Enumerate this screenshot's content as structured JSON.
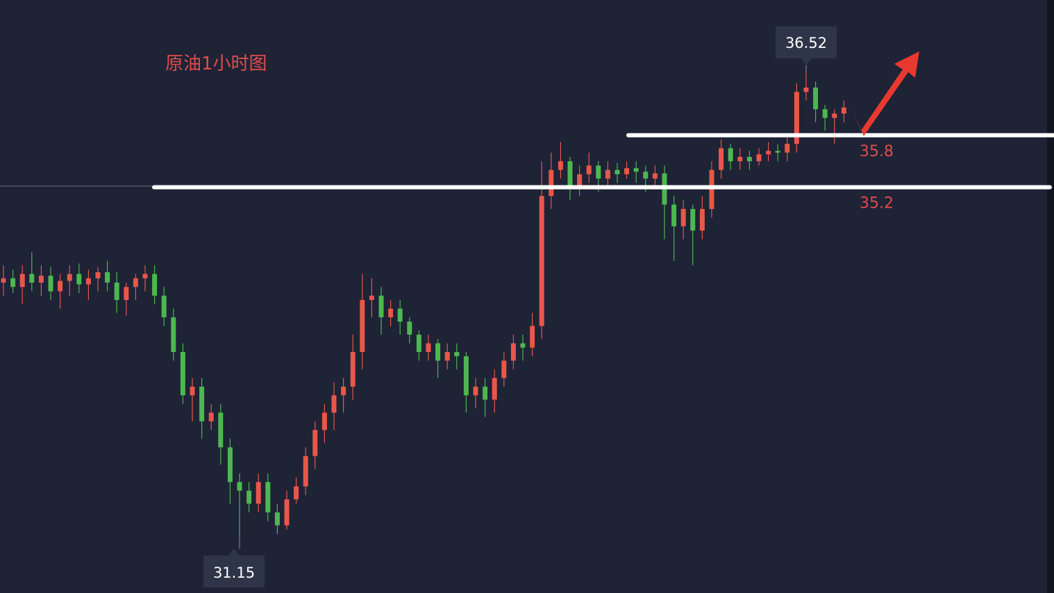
{
  "chart_data": {
    "type": "candlestick",
    "title": "原油1小时图",
    "up_color": "#e8574a",
    "down_color": "#4cb84f",
    "ylim": [
      30.52,
      37.36
    ],
    "open": [
      34.1,
      34.15,
      34.05,
      34.2,
      34.1,
      34.18,
      34.0,
      34.12,
      34.2,
      34.08,
      34.15,
      34.22,
      34.1,
      33.9,
      34.05,
      34.15,
      34.2,
      33.95,
      33.7,
      33.3,
      32.8,
      32.9,
      32.5,
      32.6,
      32.2,
      31.8,
      31.7,
      31.55,
      31.8,
      31.45,
      31.3,
      31.6,
      31.75,
      32.1,
      32.4,
      32.6,
      32.8,
      32.9,
      33.3,
      33.9,
      33.95,
      33.7,
      33.8,
      33.65,
      33.5,
      33.3,
      33.4,
      33.2,
      33.3,
      33.25,
      32.8,
      32.9,
      32.75,
      33.0,
      33.2,
      33.4,
      33.35,
      33.6,
      35.1,
      35.4,
      35.5,
      35.2,
      35.35,
      35.45,
      35.3,
      35.4,
      35.35,
      35.42,
      35.38,
      35.3,
      35.36,
      35.0,
      34.75,
      34.95,
      34.7,
      34.95,
      35.4,
      35.65,
      35.5,
      35.55,
      35.5,
      35.58,
      35.62,
      35.6,
      35.7,
      36.3,
      36.35,
      36.1,
      36.0,
      36.05
    ],
    "high": [
      34.3,
      34.25,
      34.3,
      34.45,
      34.3,
      34.28,
      34.2,
      34.3,
      34.32,
      34.25,
      34.28,
      34.35,
      34.22,
      34.1,
      34.2,
      34.3,
      34.3,
      34.05,
      33.8,
      33.4,
      33.0,
      33.0,
      32.7,
      32.7,
      32.3,
      31.9,
      31.8,
      31.9,
      31.9,
      31.55,
      31.7,
      31.85,
      32.2,
      32.5,
      32.7,
      32.95,
      33.0,
      33.5,
      34.2,
      34.15,
      34.05,
      33.9,
      33.9,
      33.7,
      33.55,
      33.5,
      33.45,
      33.4,
      33.4,
      33.3,
      33.0,
      33.0,
      33.1,
      33.3,
      33.5,
      33.5,
      33.75,
      35.5,
      35.6,
      35.72,
      35.55,
      35.45,
      35.6,
      35.5,
      35.5,
      35.48,
      35.5,
      35.5,
      35.45,
      35.45,
      35.45,
      35.1,
      35.05,
      35.0,
      35.1,
      35.5,
      35.75,
      35.7,
      35.65,
      35.62,
      35.65,
      35.72,
      35.7,
      35.8,
      36.4,
      36.52,
      36.42,
      36.15,
      36.1,
      36.2
    ],
    "low": [
      33.95,
      33.98,
      33.85,
      34.0,
      33.95,
      33.9,
      33.8,
      33.95,
      33.98,
      33.9,
      34.0,
      34.0,
      33.75,
      33.72,
      33.9,
      34.0,
      33.85,
      33.6,
      33.2,
      32.7,
      32.5,
      32.3,
      32.4,
      32.0,
      31.55,
      31.15,
      31.45,
      31.45,
      31.35,
      31.2,
      31.25,
      31.55,
      31.65,
      31.95,
      32.25,
      32.4,
      32.6,
      32.75,
      33.1,
      33.7,
      33.5,
      33.6,
      33.5,
      33.4,
      33.2,
      33.2,
      33.0,
      33.1,
      33.1,
      32.6,
      32.65,
      32.55,
      32.6,
      32.9,
      33.1,
      33.2,
      33.25,
      33.45,
      34.95,
      35.3,
      35.05,
      35.1,
      35.25,
      35.15,
      35.2,
      35.25,
      35.3,
      35.25,
      35.15,
      35.2,
      34.6,
      34.35,
      34.6,
      34.3,
      34.6,
      34.85,
      35.3,
      35.4,
      35.4,
      35.4,
      35.45,
      35.5,
      35.5,
      35.5,
      35.6,
      36.2,
      35.95,
      35.85,
      35.7,
      35.95
    ],
    "close": [
      34.15,
      34.05,
      34.2,
      34.1,
      34.18,
      34.0,
      34.12,
      34.2,
      34.08,
      34.15,
      34.22,
      34.1,
      33.9,
      34.05,
      34.15,
      34.2,
      33.95,
      33.7,
      33.3,
      32.8,
      32.9,
      32.5,
      32.6,
      32.2,
      31.8,
      31.7,
      31.55,
      31.8,
      31.45,
      31.3,
      31.6,
      31.75,
      32.1,
      32.4,
      32.6,
      32.8,
      32.9,
      33.3,
      33.9,
      33.95,
      33.7,
      33.8,
      33.65,
      33.5,
      33.3,
      33.4,
      33.2,
      33.3,
      33.25,
      32.8,
      32.9,
      32.75,
      33.0,
      33.2,
      33.4,
      33.35,
      33.6,
      35.1,
      35.4,
      35.5,
      35.2,
      35.35,
      35.45,
      35.3,
      35.4,
      35.35,
      35.42,
      35.38,
      35.3,
      35.36,
      35.0,
      34.75,
      34.95,
      34.7,
      34.95,
      35.4,
      35.65,
      35.5,
      35.55,
      35.5,
      35.58,
      35.62,
      35.6,
      35.7,
      36.3,
      36.35,
      36.1,
      36.0,
      36.05,
      36.12
    ],
    "levels": [
      35.8,
      35.2
    ]
  }
}
